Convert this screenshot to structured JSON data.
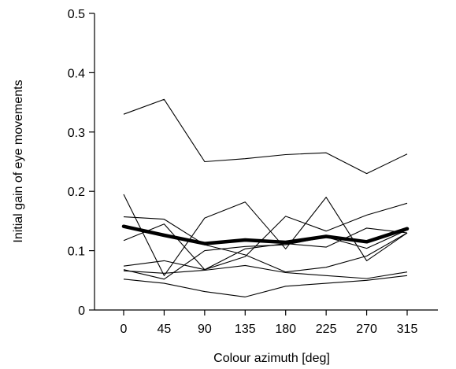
{
  "chart_data": {
    "type": "line",
    "xlabel": "Colour azimuth [deg]",
    "ylabel": "Initial gain of eye movements",
    "x": [
      0,
      45,
      90,
      135,
      180,
      225,
      270,
      315
    ],
    "x_tick_labels": [
      "0",
      "45",
      "90",
      "135",
      "180",
      "225",
      "270",
      "315"
    ],
    "y_tick_values": [
      0,
      0.1,
      0.2,
      0.3,
      0.4,
      0.5
    ],
    "y_tick_labels": [
      "0",
      "0.1",
      "0.2",
      "0.3",
      "0.4",
      "0.5"
    ],
    "ylim": [
      0,
      0.5
    ],
    "xlim": [
      -35,
      360
    ],
    "grid": false,
    "legend": "none",
    "colors": {
      "line": "#000000"
    },
    "series": [
      {
        "values": [
          0.33,
          0.355,
          0.25,
          0.255,
          0.262,
          0.265,
          0.23,
          0.263
        ]
      },
      {
        "values": [
          0.157,
          0.153,
          0.11,
          0.093,
          0.064,
          0.072,
          0.091,
          0.13
        ]
      },
      {
        "values": [
          0.195,
          0.058,
          0.155,
          0.182,
          0.103,
          0.19,
          0.083,
          0.13
        ]
      },
      {
        "values": [
          0.117,
          0.145,
          0.068,
          0.09,
          0.158,
          0.133,
          0.16,
          0.18
        ]
      },
      {
        "values": [
          0.074,
          0.083,
          0.068,
          0.103,
          0.112,
          0.106,
          0.138,
          0.13
        ]
      },
      {
        "values": [
          0.068,
          0.052,
          0.1,
          0.107,
          0.11,
          0.123,
          0.104,
          0.135
        ]
      },
      {
        "values": [
          0.066,
          0.062,
          0.067,
          0.075,
          0.063,
          0.058,
          0.053,
          0.064
        ]
      },
      {
        "values": [
          0.052,
          0.045,
          0.031,
          0.022,
          0.04,
          0.045,
          0.05,
          0.058
        ]
      },
      {
        "values": [
          0.141,
          0.126,
          0.112,
          0.118,
          0.114,
          0.124,
          0.115,
          0.137
        ],
        "emphasis": "mean"
      }
    ]
  }
}
